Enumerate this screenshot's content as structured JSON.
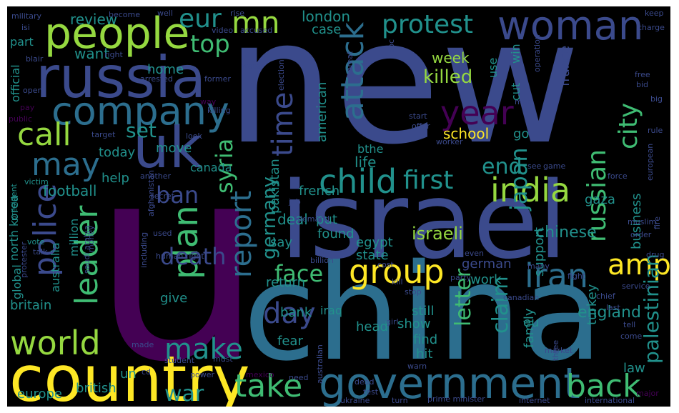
{
  "palette": {
    "background": "#000000",
    "purple": "#440154",
    "indigo": "#3b4a8c",
    "blue": "#2c6e8e",
    "teal": "#21918c",
    "green": "#3fbc73",
    "lime": "#95d840",
    "yellow": "#fde725"
  },
  "words": [
    {
      "text": "new",
      "c": "indigo"
    },
    {
      "text": "u",
      "c": "purple"
    },
    {
      "text": "china",
      "c": "blue"
    },
    {
      "text": "israel",
      "c": "indigo"
    },
    {
      "text": "country",
      "c": "yellow"
    },
    {
      "text": "russia",
      "c": "indigo"
    },
    {
      "text": "uk",
      "c": "indigo"
    },
    {
      "text": "people",
      "c": "lime"
    },
    {
      "text": "woman",
      "c": "indigo"
    },
    {
      "text": "government",
      "c": "blue"
    },
    {
      "text": "company",
      "c": "blue"
    },
    {
      "text": "child",
      "c": "teal"
    },
    {
      "text": "india",
      "c": "lime"
    },
    {
      "text": "world",
      "c": "lime"
    },
    {
      "text": "group",
      "c": "yellow"
    },
    {
      "text": "call",
      "c": "lime"
    },
    {
      "text": "year",
      "c": "purple"
    },
    {
      "text": "iran",
      "c": "blue"
    },
    {
      "text": "may",
      "c": "blue"
    },
    {
      "text": "first",
      "c": "teal"
    },
    {
      "text": "take",
      "c": "green"
    },
    {
      "text": "back",
      "c": "green"
    },
    {
      "text": "attack",
      "c": "blue"
    },
    {
      "text": "plan",
      "c": "green"
    },
    {
      "text": "police",
      "c": "indigo"
    },
    {
      "text": "leader",
      "c": "green"
    },
    {
      "text": "amp",
      "c": "yellow"
    },
    {
      "text": "report",
      "c": "blue"
    },
    {
      "text": "day",
      "c": "indigo"
    },
    {
      "text": "make",
      "c": "teal"
    },
    {
      "text": "face",
      "c": "green"
    },
    {
      "text": "time",
      "c": "indigo"
    },
    {
      "text": "protest",
      "c": "teal"
    },
    {
      "text": "mn",
      "c": "lime"
    },
    {
      "text": "eur",
      "c": "teal"
    },
    {
      "text": "top",
      "c": "green"
    },
    {
      "text": "russian",
      "c": "green"
    },
    {
      "text": "city",
      "c": "green"
    },
    {
      "text": "palestinian",
      "c": "teal"
    },
    {
      "text": "ban",
      "c": "indigo"
    },
    {
      "text": "death",
      "c": "indigo"
    },
    {
      "text": "syria",
      "c": "green"
    },
    {
      "text": "end",
      "c": "teal"
    },
    {
      "text": "japan",
      "c": "teal"
    },
    {
      "text": "war",
      "c": "teal"
    },
    {
      "text": "letter",
      "c": "green"
    },
    {
      "text": "claim",
      "c": "teal"
    },
    {
      "text": "israeli",
      "c": "lime"
    },
    {
      "text": "killed",
      "c": "lime"
    },
    {
      "text": "set",
      "c": "teal"
    },
    {
      "text": "germany",
      "c": "teal"
    },
    {
      "text": "football",
      "c": "teal"
    },
    {
      "text": "england",
      "c": "teal"
    },
    {
      "text": "chinese",
      "c": "teal"
    },
    {
      "text": "deal",
      "c": "teal"
    },
    {
      "text": "school",
      "c": "yellow"
    },
    {
      "text": "week",
      "c": "lime"
    },
    {
      "text": "review",
      "c": "teal"
    },
    {
      "text": "london",
      "c": "teal"
    },
    {
      "text": "case",
      "c": "teal"
    },
    {
      "text": "home",
      "c": "teal"
    },
    {
      "text": "want",
      "c": "teal"
    },
    {
      "text": "move",
      "c": "teal"
    },
    {
      "text": "today",
      "c": "teal"
    },
    {
      "text": "help",
      "c": "teal"
    },
    {
      "text": "canada",
      "c": "teal"
    },
    {
      "text": "french",
      "c": "teal"
    },
    {
      "text": "life",
      "c": "teal"
    },
    {
      "text": "say",
      "c": "teal"
    },
    {
      "text": "found",
      "c": "teal"
    },
    {
      "text": "egypt",
      "c": "teal"
    },
    {
      "text": "state",
      "c": "teal"
    },
    {
      "text": "return",
      "c": "teal"
    },
    {
      "text": "give",
      "c": "teal"
    },
    {
      "text": "work",
      "c": "teal"
    },
    {
      "text": "bank",
      "c": "teal"
    },
    {
      "text": "still",
      "c": "teal"
    },
    {
      "text": "show",
      "c": "teal"
    },
    {
      "text": "find",
      "c": "teal"
    },
    {
      "text": "iraq",
      "c": "teal"
    },
    {
      "text": "head",
      "c": "teal"
    },
    {
      "text": "hit",
      "c": "teal"
    },
    {
      "text": "fear",
      "c": "teal"
    },
    {
      "text": "eu",
      "c": "teal"
    },
    {
      "text": "turkey",
      "c": "teal"
    },
    {
      "text": "law",
      "c": "teal"
    },
    {
      "text": "family",
      "c": "teal"
    },
    {
      "text": "un",
      "c": "teal"
    },
    {
      "text": "british",
      "c": "teal"
    },
    {
      "text": "europe",
      "c": "teal"
    },
    {
      "text": "britain",
      "c": "teal"
    },
    {
      "text": "australia",
      "c": "teal"
    },
    {
      "text": "million",
      "c": "teal"
    },
    {
      "text": "north korea",
      "c": "teal"
    },
    {
      "text": "global",
      "c": "teal"
    },
    {
      "text": "official",
      "c": "teal"
    },
    {
      "text": "part",
      "c": "teal"
    },
    {
      "text": "gaza",
      "c": "teal"
    },
    {
      "text": "business",
      "c": "teal"
    },
    {
      "text": "support",
      "c": "teal"
    },
    {
      "text": "go",
      "c": "teal"
    },
    {
      "text": "american",
      "c": "teal"
    },
    {
      "text": "pakistan",
      "c": "teal"
    },
    {
      "text": "bthe",
      "c": "teal"
    },
    {
      "text": "german",
      "c": "indigo"
    },
    {
      "text": "france",
      "c": "indigo"
    },
    {
      "text": "use",
      "c": "teal"
    },
    {
      "text": "win",
      "c": "teal"
    },
    {
      "text": "cut",
      "c": "teal"
    },
    {
      "text": "put",
      "c": "teal"
    },
    {
      "text": "military",
      "c": "indigo"
    },
    {
      "text": "become",
      "c": "indigo"
    },
    {
      "text": "well",
      "c": "indigo"
    },
    {
      "text": "rise",
      "c": "indigo"
    },
    {
      "text": "keep",
      "c": "indigo"
    },
    {
      "text": "charge",
      "c": "indigo"
    },
    {
      "text": "video",
      "c": "indigo"
    },
    {
      "text": "accused",
      "c": "indigo"
    },
    {
      "text": "isi",
      "c": "indigo"
    },
    {
      "text": "right",
      "c": "indigo"
    },
    {
      "text": "blair",
      "c": "indigo"
    },
    {
      "text": "arrested",
      "c": "indigo"
    },
    {
      "text": "former",
      "c": "indigo"
    },
    {
      "text": "water",
      "c": "indigo"
    },
    {
      "text": "open",
      "c": "indigo"
    },
    {
      "text": "pay",
      "c": "purple"
    },
    {
      "text": "public",
      "c": "purple"
    },
    {
      "text": "way",
      "c": "purple"
    },
    {
      "text": "killing",
      "c": "indigo"
    },
    {
      "text": "target",
      "c": "indigo"
    },
    {
      "text": "look",
      "c": "indigo"
    },
    {
      "text": "another",
      "c": "indigo"
    },
    {
      "text": "secret",
      "c": "indigo"
    },
    {
      "text": "victim",
      "c": "teal"
    },
    {
      "text": "president",
      "c": "teal"
    },
    {
      "text": "saudi arabia",
      "c": "indigo"
    },
    {
      "text": "including",
      "c": "indigo"
    },
    {
      "text": "afghanistan",
      "c": "indigo"
    },
    {
      "text": "used",
      "c": "indigo"
    },
    {
      "text": "job",
      "c": "indigo"
    },
    {
      "text": "demand",
      "c": "indigo"
    },
    {
      "text": "vote",
      "c": "teal"
    },
    {
      "text": "talk",
      "c": "indigo"
    },
    {
      "text": "protester",
      "c": "indigo"
    },
    {
      "text": "money",
      "c": "indigo"
    },
    {
      "text": "human right",
      "c": "indigo"
    },
    {
      "text": "run",
      "c": "indigo"
    },
    {
      "text": "billion",
      "c": "indigo"
    },
    {
      "text": "cost",
      "c": "indigo"
    },
    {
      "text": "kill",
      "c": "indigo"
    },
    {
      "text": "stop",
      "c": "indigo"
    },
    {
      "text": "party",
      "c": "indigo"
    },
    {
      "text": "even",
      "c": "indigo"
    },
    {
      "text": "canadian",
      "c": "indigo"
    },
    {
      "text": "many",
      "c": "indigo"
    },
    {
      "text": "fight",
      "c": "indigo"
    },
    {
      "text": "girl",
      "c": "indigo"
    },
    {
      "text": "warn",
      "c": "indigo"
    },
    {
      "text": "made",
      "c": "indigo"
    },
    {
      "text": "student",
      "c": "indigo"
    },
    {
      "text": "must",
      "c": "indigo"
    },
    {
      "text": "cd",
      "c": "indigo"
    },
    {
      "text": "power",
      "c": "indigo"
    },
    {
      "text": "mexico",
      "c": "purple"
    },
    {
      "text": "need",
      "c": "indigo"
    },
    {
      "text": "ukraine",
      "c": "indigo"
    },
    {
      "text": "turn",
      "c": "indigo"
    },
    {
      "text": "prime minister",
      "c": "indigo"
    },
    {
      "text": "internet",
      "c": "indigo"
    },
    {
      "text": "international",
      "c": "indigo"
    },
    {
      "text": "major",
      "c": "purple"
    },
    {
      "text": "tell",
      "c": "indigo"
    },
    {
      "text": "come",
      "c": "indigo"
    },
    {
      "text": "market",
      "c": "indigo"
    },
    {
      "text": "three",
      "c": "indigo"
    },
    {
      "text": "chief",
      "c": "indigo"
    },
    {
      "text": "last",
      "c": "indigo"
    },
    {
      "text": "service",
      "c": "indigo"
    },
    {
      "text": "drug",
      "c": "indigo"
    },
    {
      "text": "fire",
      "c": "indigo"
    },
    {
      "text": "muslim",
      "c": "indigo"
    },
    {
      "text": "order",
      "c": "indigo"
    },
    {
      "text": "force",
      "c": "indigo"
    },
    {
      "text": "european",
      "c": "indigo"
    },
    {
      "text": "rule",
      "c": "indigo"
    },
    {
      "text": "game",
      "c": "indigo"
    },
    {
      "text": "see",
      "c": "indigo"
    },
    {
      "text": "worker",
      "c": "indigo"
    },
    {
      "text": "offer",
      "c": "indigo"
    },
    {
      "text": "start",
      "c": "indigo"
    },
    {
      "text": "men",
      "c": "indigo"
    },
    {
      "text": "operation",
      "c": "indigo"
    },
    {
      "text": "bbc",
      "c": "indigo"
    },
    {
      "text": "threat",
      "c": "indigo"
    },
    {
      "text": "election",
      "c": "indigo"
    },
    {
      "text": "free",
      "c": "indigo"
    },
    {
      "text": "bid",
      "c": "indigo"
    },
    {
      "text": "big",
      "c": "indigo"
    },
    {
      "text": "australian",
      "c": "indigo"
    },
    {
      "text": "dead",
      "c": "indigo"
    },
    {
      "text": "test",
      "c": "indigo"
    }
  ]
}
